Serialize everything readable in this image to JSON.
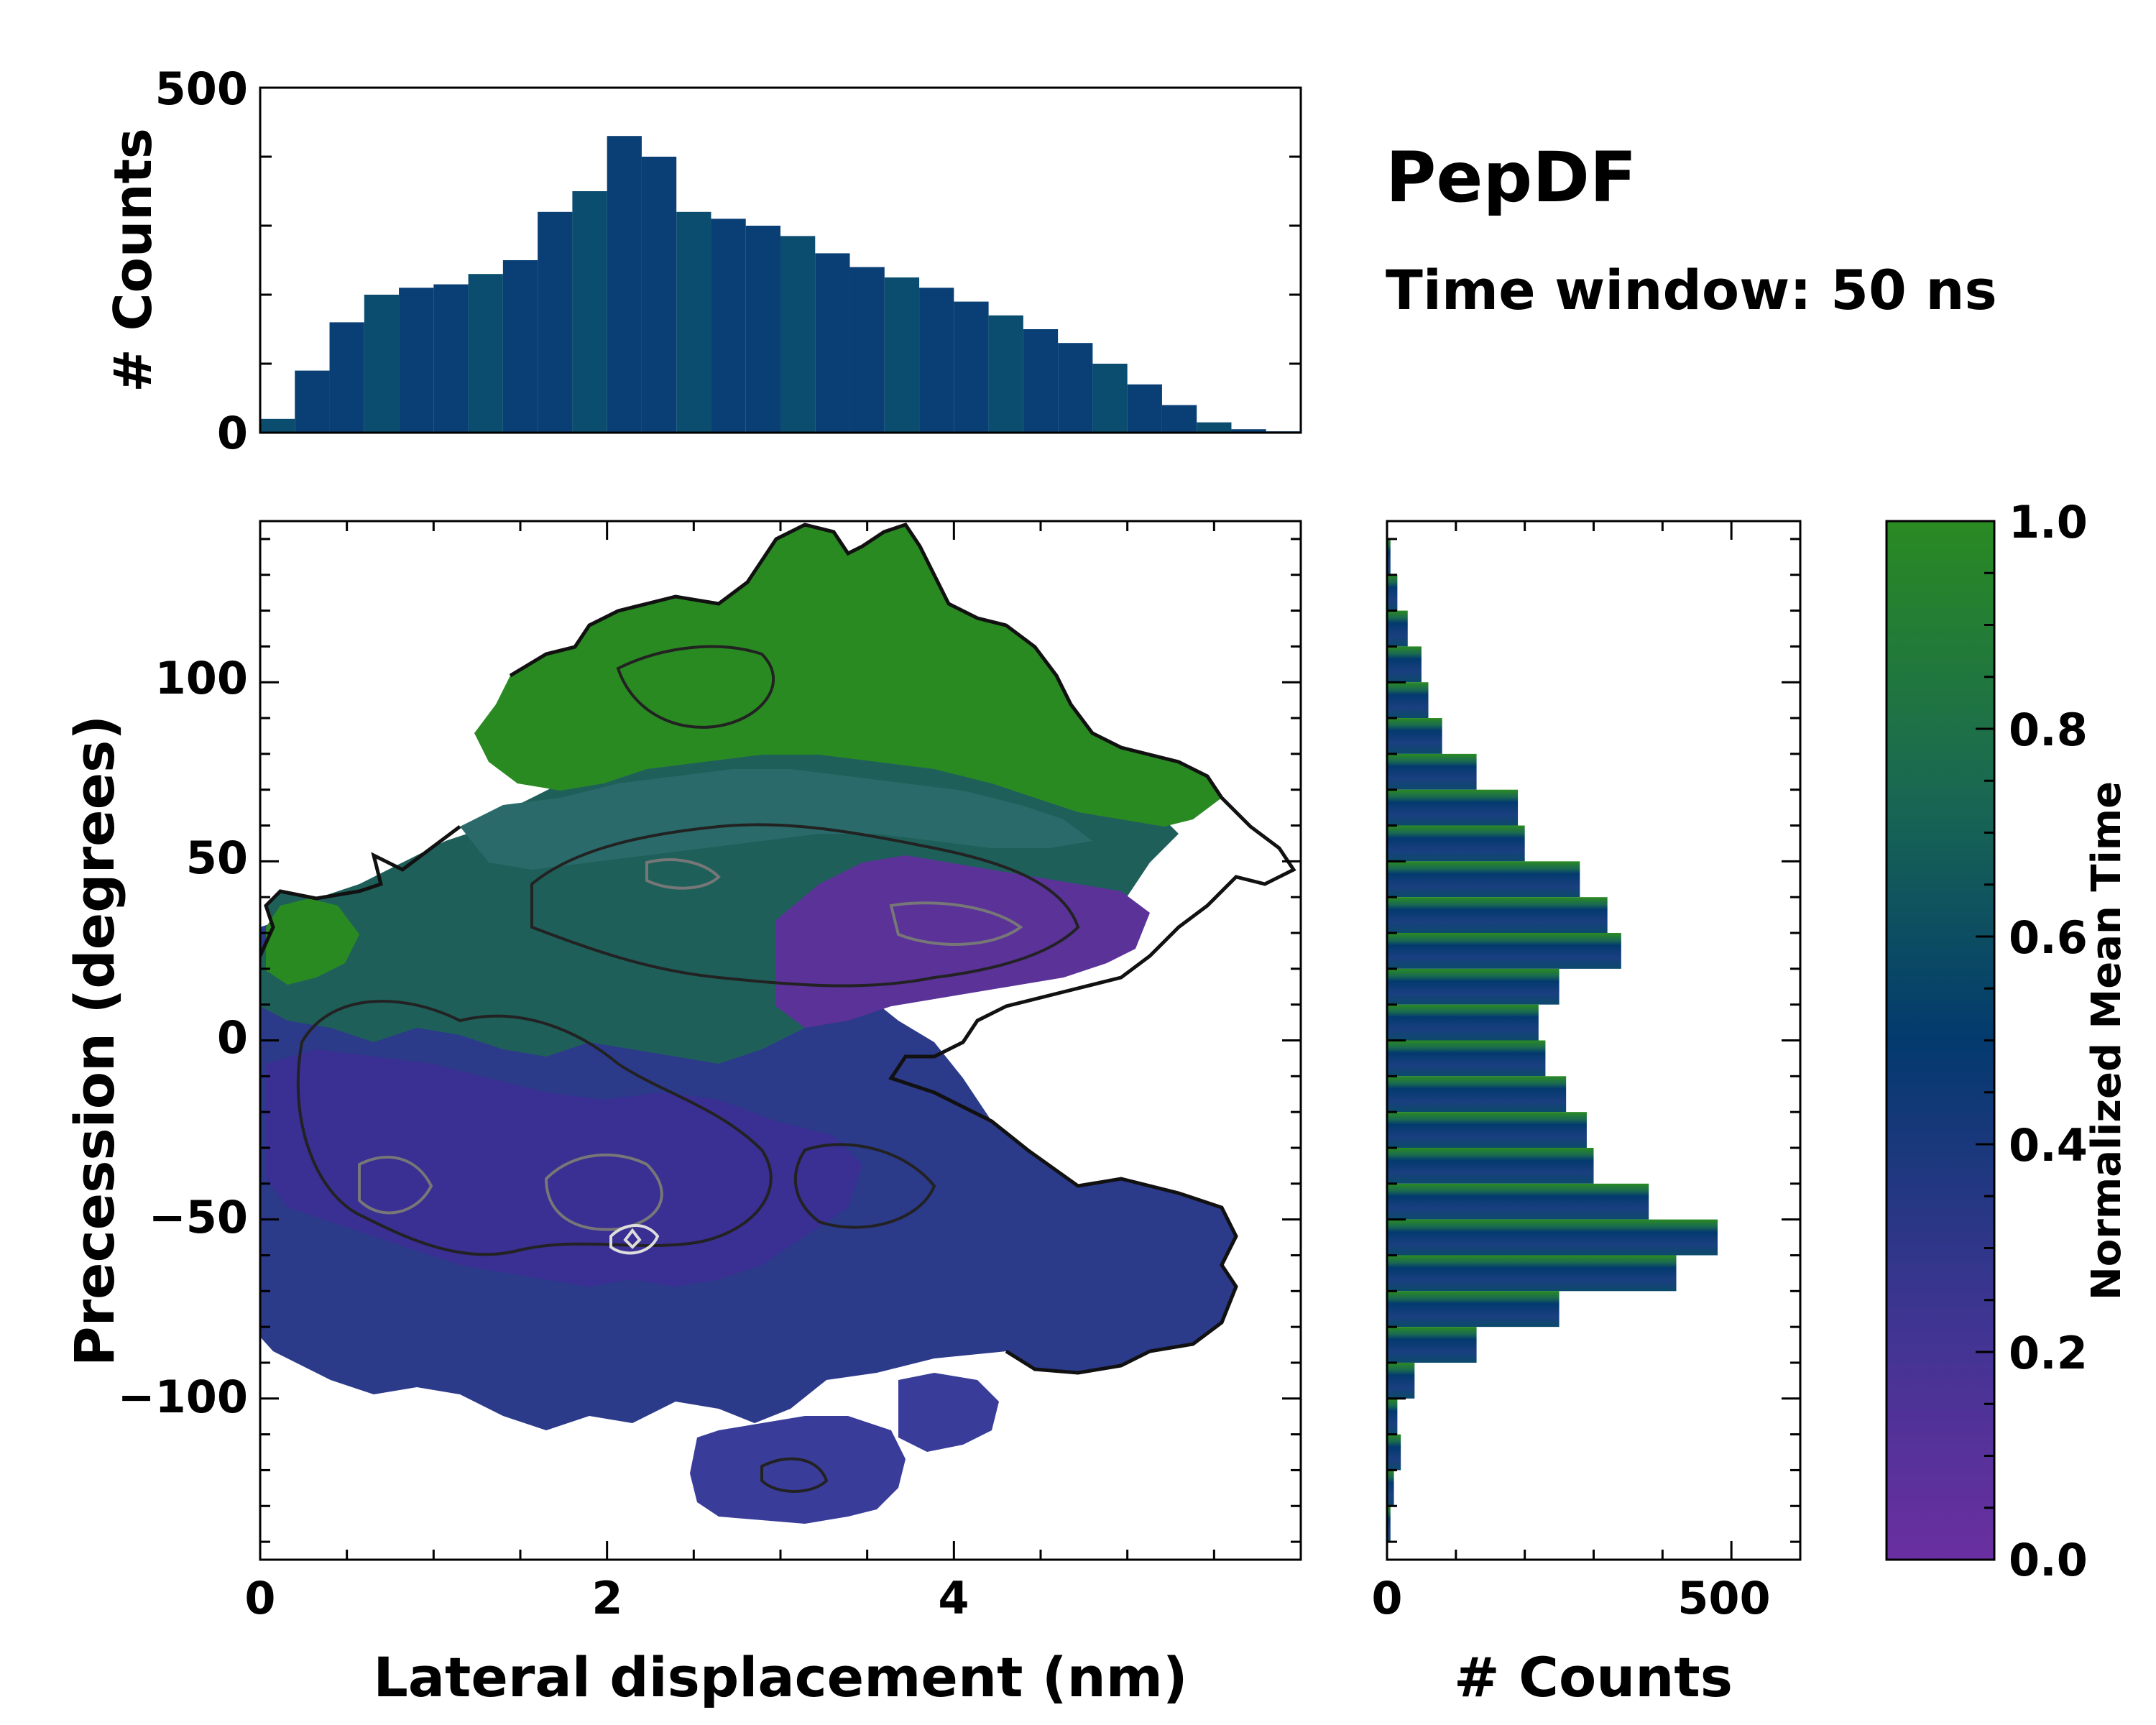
{
  "figure": {
    "title": "PepDF",
    "subtitle": "Time window: 50 ns"
  },
  "chart_data": [
    {
      "id": "main-heatmap",
      "type": "heatmap",
      "xlabel": "Lateral displacement (nm)",
      "ylabel": "Precession (degrees)",
      "xlim": [
        0,
        6
      ],
      "ylim": [
        -145,
        145
      ],
      "xticks": [
        "0",
        "2",
        "4"
      ],
      "yticks": [
        "100",
        "50",
        "0",
        "−50",
        "−100"
      ],
      "ytick_values": [
        100,
        50,
        0,
        -50,
        -100
      ],
      "xtick_values": [
        0,
        2,
        4
      ],
      "color_meaning": "Normalized Mean Time",
      "regions": [
        {
          "name": "upper-green-lobe",
          "x_range": [
            1.4,
            4.6
          ],
          "y_range": [
            60,
            140
          ],
          "mean_time": 0.9
        },
        {
          "name": "mid-band-purple",
          "x_range": [
            3.0,
            5.0
          ],
          "y_range": [
            0,
            45
          ],
          "mean_time": 0.15
        },
        {
          "name": "lower-main-mass",
          "x_range": [
            0,
            5.6
          ],
          "y_range": [
            -100,
            0
          ],
          "mean_time": 0.3
        },
        {
          "name": "bottom-island",
          "x_range": [
            2.5,
            3.6
          ],
          "y_range": [
            -140,
            -110
          ],
          "mean_time": 0.35
        }
      ],
      "density_peak": {
        "x": 2.1,
        "y": -58
      }
    },
    {
      "id": "top-histogram",
      "type": "bar",
      "xlabel": "",
      "ylabel": "# Counts",
      "xlim": [
        0,
        6
      ],
      "ylim": [
        0,
        500
      ],
      "yticks": [
        "500",
        "0"
      ],
      "ytick_values": [
        500,
        0
      ],
      "x": [
        0.1,
        0.3,
        0.5,
        0.7,
        0.9,
        1.1,
        1.3,
        1.5,
        1.7,
        1.9,
        2.1,
        2.3,
        2.5,
        2.7,
        2.9,
        3.1,
        3.3,
        3.5,
        3.7,
        3.9,
        4.1,
        4.3,
        4.5,
        4.7,
        4.9,
        5.1,
        5.3,
        5.5,
        5.7,
        5.9
      ],
      "values": [
        20,
        90,
        160,
        200,
        210,
        215,
        230,
        250,
        320,
        350,
        430,
        400,
        320,
        310,
        300,
        285,
        260,
        240,
        225,
        210,
        190,
        170,
        150,
        130,
        100,
        70,
        40,
        15,
        5,
        2
      ]
    },
    {
      "id": "right-histogram",
      "type": "bar",
      "orientation": "horizontal",
      "xlabel": "# Counts",
      "ylabel": "",
      "xlim": [
        0,
        600
      ],
      "ylim": [
        -145,
        145
      ],
      "xticks": [
        "0",
        "500"
      ],
      "xtick_values": [
        0,
        500
      ],
      "y": [
        135,
        125,
        115,
        105,
        95,
        85,
        75,
        65,
        55,
        45,
        35,
        25,
        15,
        5,
        -5,
        -15,
        -25,
        -35,
        -45,
        -55,
        -65,
        -75,
        -85,
        -95,
        -105,
        -115,
        -125,
        -135
      ],
      "values": [
        5,
        15,
        30,
        50,
        60,
        80,
        130,
        190,
        200,
        280,
        320,
        340,
        250,
        220,
        230,
        260,
        290,
        300,
        380,
        480,
        420,
        250,
        130,
        40,
        15,
        20,
        10,
        5
      ]
    },
    {
      "id": "colorbar",
      "type": "colorbar",
      "label": "Normalized Mean Time",
      "range": [
        0,
        1
      ],
      "ticks": [
        "1.0",
        "0.8",
        "0.6",
        "0.4",
        "0.2",
        "0.0"
      ],
      "tick_values": [
        1.0,
        0.8,
        0.6,
        0.4,
        0.2,
        0.0
      ],
      "colors": {
        "low": "#6a2fa0",
        "mid": "#033a6e",
        "high": "#2a8a22"
      }
    }
  ]
}
